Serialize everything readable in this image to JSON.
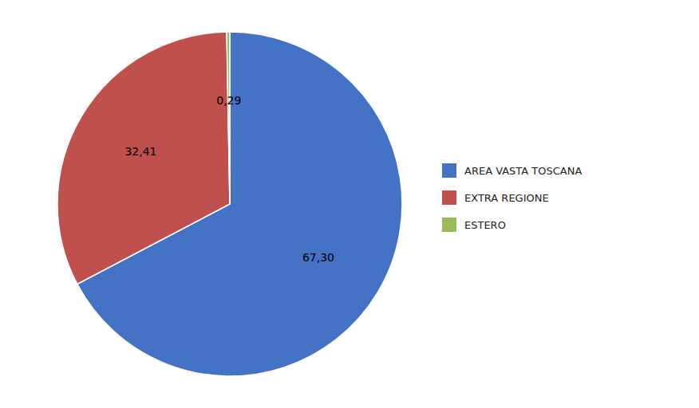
{
  "chart_data": {
    "type": "pie",
    "categories": [
      "AREA VASTA TOSCANA",
      "EXTRA REGIONE",
      "ESTERO"
    ],
    "values": [
      67.3,
      32.41,
      0.29
    ],
    "value_labels": [
      "67,30",
      "32,41",
      "0,29"
    ],
    "colors": [
      "#4472C4",
      "#C0504D",
      "#9BBB59"
    ],
    "data_labels": true,
    "legend": "right"
  }
}
